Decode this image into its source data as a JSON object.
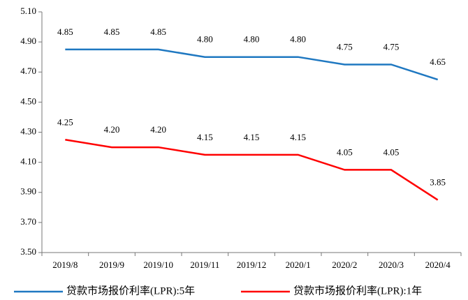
{
  "chart_data": {
    "type": "line",
    "categories": [
      "2019/8",
      "2019/9",
      "2019/10",
      "2019/11",
      "2019/12",
      "2020/1",
      "2020/2",
      "2020/3",
      "2020/4"
    ],
    "series": [
      {
        "name": "贷款市场报价利率(LPR):5年",
        "color": "#1f78c1",
        "values": [
          4.85,
          4.85,
          4.85,
          4.8,
          4.8,
          4.8,
          4.75,
          4.75,
          4.65
        ],
        "value_labels": [
          "4.85",
          "4.85",
          "4.85",
          "4.80",
          "4.80",
          "4.80",
          "4.75",
          "4.75",
          "4.65"
        ]
      },
      {
        "name": "贷款市场报价利率(LPR):1年",
        "color": "#ff0000",
        "values": [
          4.25,
          4.2,
          4.2,
          4.15,
          4.15,
          4.15,
          4.05,
          4.05,
          3.85
        ],
        "value_labels": [
          "4.25",
          "4.20",
          "4.20",
          "4.15",
          "4.15",
          "4.15",
          "4.05",
          "4.05",
          "3.85"
        ]
      }
    ],
    "ylim": [
      3.5,
      5.1
    ],
    "yticks": [
      {
        "value": 3.5,
        "label": "3.50"
      },
      {
        "value": 3.7,
        "label": "3.70"
      },
      {
        "value": 3.9,
        "label": "3.90"
      },
      {
        "value": 4.1,
        "label": "4.10"
      },
      {
        "value": 4.3,
        "label": "4.30"
      },
      {
        "value": 4.5,
        "label": "4.50"
      },
      {
        "value": 4.7,
        "label": "4.70"
      },
      {
        "value": 4.9,
        "label": "4.90"
      },
      {
        "value": 5.1,
        "label": "5.10"
      }
    ],
    "grid": false,
    "legend": "bottom"
  }
}
